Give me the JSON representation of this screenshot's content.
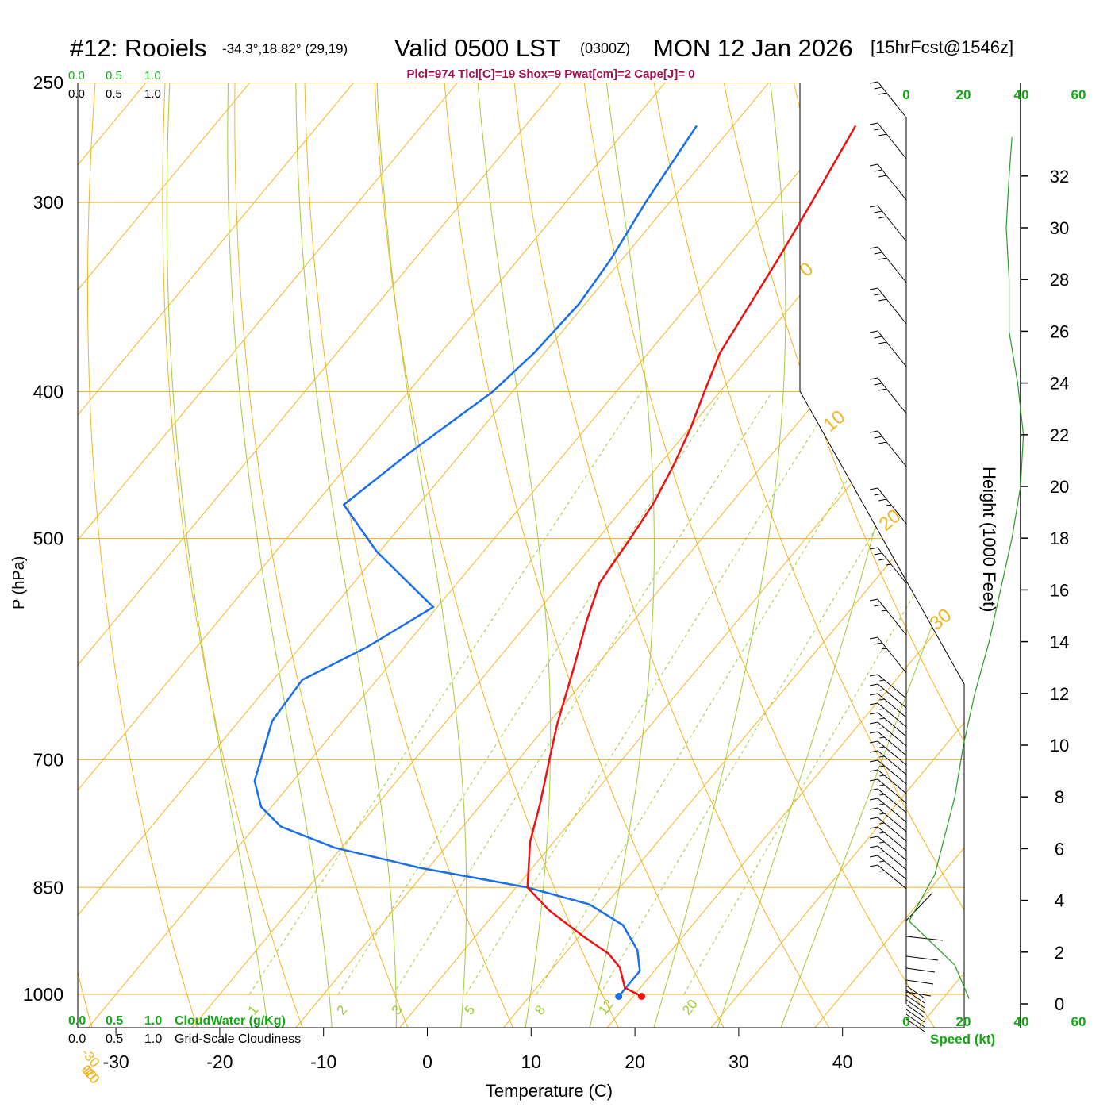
{
  "header": {
    "station": "#12: Rooiels",
    "coords": "-34.3°,18.82° (29,19)",
    "valid": "Valid 0500 LST",
    "zulu": "(0300Z)",
    "date": "MON 12 Jan 2026",
    "forecast": "[15hrFcst@1546z]",
    "indices": "Plcl=974 Tlcl[C]=19 Shox=9 Pwat[cm]=2 Cape[J]= 0"
  },
  "colors": {
    "temperature": "#ee1111",
    "dewpoint": "#1a6fe6",
    "isotherm": "#f2b522",
    "moist_adiabat": "#a8cf4a",
    "mixing_ratio": "#9ccc33",
    "green_text": "#13a813",
    "indices_text": "#a0104e"
  },
  "chart_data": {
    "type": "line",
    "skewt": {
      "xlabel": "Temperature (C)",
      "ylabel": "P (hPa)",
      "x_ticks": [
        "-30",
        "-20",
        "-10",
        "0",
        "10",
        "20",
        "30",
        "40"
      ],
      "p_ticks": [
        {
          "p": 250,
          "label": "250"
        },
        {
          "p": 300,
          "label": "300"
        },
        {
          "p": 400,
          "label": "400"
        },
        {
          "p": 500,
          "label": "500"
        },
        {
          "p": 700,
          "label": "700"
        },
        {
          "p": 850,
          "label": "850"
        },
        {
          "p": 1000,
          "label": "1000"
        }
      ],
      "skewed_isotherm_labels": [
        {
          "t": 10,
          "label": "10"
        },
        {
          "t": 0,
          "label": "0"
        },
        {
          "t": -10,
          "label": "-10"
        },
        {
          "t": -20,
          "label": "-20"
        },
        {
          "t": -30,
          "label": "-30"
        }
      ],
      "dry_adiabat_labels": [
        {
          "label": "0"
        },
        {
          "label": "10"
        },
        {
          "label": "20"
        },
        {
          "label": "30"
        }
      ],
      "mixing_ratio_labels": [
        "1",
        "2",
        "3",
        "5",
        "8",
        "12",
        "20"
      ],
      "series": [
        {
          "key": "temperature",
          "points": [
            {
              "t": -28.2,
              "p": 267
            },
            {
              "t": -26.3,
              "p": 300
            },
            {
              "t": -25.0,
              "p": 327
            },
            {
              "t": -24.1,
              "p": 350
            },
            {
              "t": -23.1,
              "p": 377
            },
            {
              "t": -21.5,
              "p": 400
            },
            {
              "t": -19.9,
              "p": 423
            },
            {
              "t": -18.6,
              "p": 447
            },
            {
              "t": -17.5,
              "p": 473
            },
            {
              "t": -16.9,
              "p": 500
            },
            {
              "t": -16.3,
              "p": 535
            },
            {
              "t": -14.5,
              "p": 567
            },
            {
              "t": -12.1,
              "p": 607
            },
            {
              "t": -9.1,
              "p": 663
            },
            {
              "t": -7.0,
              "p": 700
            },
            {
              "t": -4.4,
              "p": 748
            },
            {
              "t": -2.3,
              "p": 793
            },
            {
              "t": 1.1,
              "p": 850
            },
            {
              "t": 5.0,
              "p": 880
            },
            {
              "t": 10.3,
              "p": 915
            },
            {
              "t": 14.2,
              "p": 940
            },
            {
              "t": 16.4,
              "p": 960
            },
            {
              "t": 18.5,
              "p": 990
            },
            {
              "t": 20.8,
              "p": 1003
            }
          ]
        },
        {
          "key": "dewpoint",
          "points": [
            {
              "t": -43.5,
              "p": 267
            },
            {
              "t": -42.3,
              "p": 300
            },
            {
              "t": -41.1,
              "p": 327
            },
            {
              "t": -40.6,
              "p": 350
            },
            {
              "t": -41.0,
              "p": 377
            },
            {
              "t": -41.9,
              "p": 400
            },
            {
              "t": -45.1,
              "p": 440
            },
            {
              "t": -47.2,
              "p": 475
            },
            {
              "t": -40.3,
              "p": 510
            },
            {
              "t": -30.4,
              "p": 555
            },
            {
              "t": -33.6,
              "p": 590
            },
            {
              "t": -37.2,
              "p": 620
            },
            {
              "t": -36.8,
              "p": 660
            },
            {
              "t": -34.8,
              "p": 700
            },
            {
              "t": -33.7,
              "p": 723
            },
            {
              "t": -31.0,
              "p": 752
            },
            {
              "t": -27.5,
              "p": 775
            },
            {
              "t": -20.7,
              "p": 800
            },
            {
              "t": -10.8,
              "p": 825
            },
            {
              "t": 1.1,
              "p": 850
            },
            {
              "t": 8.4,
              "p": 872
            },
            {
              "t": 13.3,
              "p": 900
            },
            {
              "t": 16.7,
              "p": 935
            },
            {
              "t": 18.6,
              "p": 965
            },
            {
              "t": 18.6,
              "p": 1003
            }
          ]
        }
      ],
      "bottom_scales": {
        "cloudwater_ticks": [
          "0.0",
          "0.5",
          "1.0"
        ],
        "cloudwater_label": "CloudWater (g/Kg)",
        "cloudiness_ticks": [
          "0.0",
          "0.5",
          "1.0"
        ],
        "cloudiness_label": "Grid-Scale Cloudiness"
      },
      "top_scales": {
        "green_ticks": [
          "0.0",
          "0.5",
          "1.0"
        ],
        "black_ticks": [
          "0.0",
          "0.5",
          "1.0"
        ]
      }
    },
    "wind": {
      "height_axis_label": "Height (1000 Feet)",
      "height_ticks": [
        "0",
        "2",
        "4",
        "6",
        "8",
        "10",
        "12",
        "14",
        "16",
        "18",
        "20",
        "22",
        "24",
        "26",
        "28",
        "30",
        "32"
      ],
      "speed_ticks_top": [
        "0",
        "20",
        "40",
        "60"
      ],
      "speed_ticks_bottom": [
        "0",
        "20",
        "40",
        "60"
      ],
      "speed_label": "Speed (kt)",
      "speed_profile_kt": [
        {
          "h": 0.2,
          "s": 22
        },
        {
          "h": 1.5,
          "s": 17
        },
        {
          "h": 3.2,
          "s": 1
        },
        {
          "h": 5.0,
          "s": 10
        },
        {
          "h": 8.0,
          "s": 17
        },
        {
          "h": 10.0,
          "s": 20
        },
        {
          "h": 12.0,
          "s": 24
        },
        {
          "h": 14.0,
          "s": 29
        },
        {
          "h": 16.0,
          "s": 33
        },
        {
          "h": 18.0,
          "s": 37
        },
        {
          "h": 20.0,
          "s": 40
        },
        {
          "h": 22.0,
          "s": 41
        },
        {
          "h": 24.0,
          "s": 39
        },
        {
          "h": 26.0,
          "s": 36
        },
        {
          "h": 28.0,
          "s": 36
        },
        {
          "h": 30.0,
          "s": 35
        },
        {
          "h": 32.0,
          "s": 36
        },
        {
          "h": 33.5,
          "s": 37
        }
      ]
    }
  }
}
